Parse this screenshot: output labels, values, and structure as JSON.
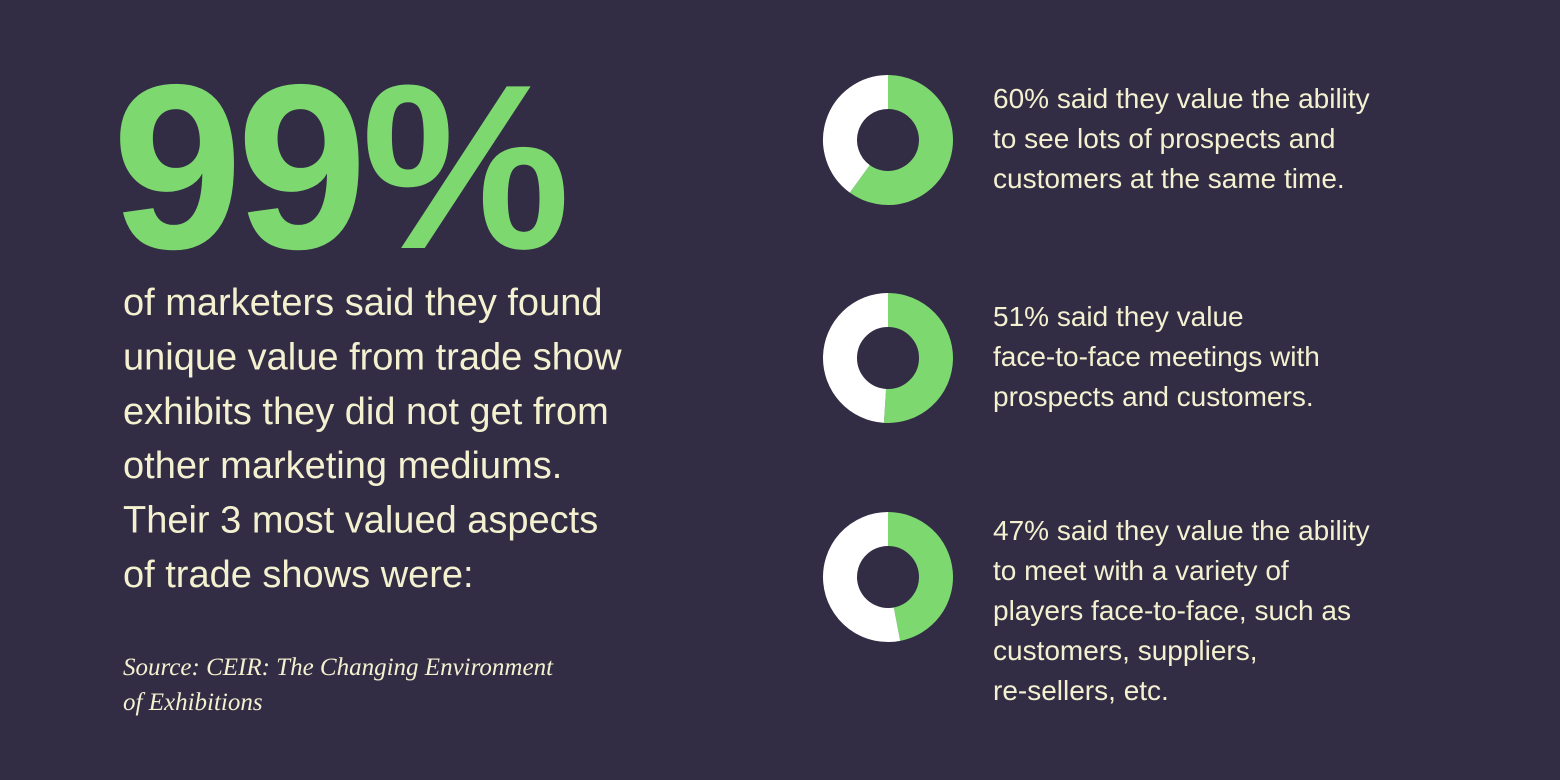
{
  "headline": "99%",
  "body": [
    "of marketers said they found",
    "unique value from trade show",
    "exhibits they did not get from",
    "other marketing mediums.",
    "Their 3 most valued aspects",
    "of trade shows were:"
  ],
  "source": [
    "Source: CEIR: The Changing Environment",
    "of Exhibitions"
  ],
  "chart_data": [
    {
      "type": "donut",
      "values": [
        60,
        40
      ],
      "colors": [
        "#7dd870",
        "#ffffff"
      ],
      "caption": [
        "60% said they value the ability",
        "to see lots of prospects and",
        "customers at the same time."
      ]
    },
    {
      "type": "donut",
      "values": [
        51,
        49
      ],
      "colors": [
        "#7dd870",
        "#ffffff"
      ],
      "caption": [
        "51% said they value",
        "face-to-face meetings with",
        "prospects and customers."
      ]
    },
    {
      "type": "donut",
      "values": [
        47,
        53
      ],
      "colors": [
        "#7dd870",
        "#ffffff"
      ],
      "caption": [
        "47% said they value the ability",
        "to meet with a variety of",
        "players face-to-face, such as",
        "customers, suppliers,",
        "re-sellers, etc."
      ]
    }
  ]
}
